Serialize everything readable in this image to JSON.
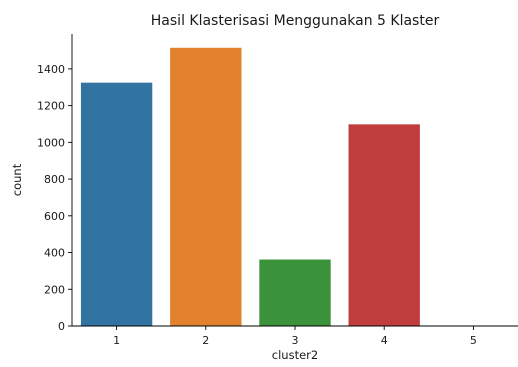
{
  "chart_data": {
    "type": "bar",
    "title": "Hasil Klasterisasi Menggunakan 5 Klaster",
    "xlabel": "cluster2",
    "ylabel": "count",
    "categories": [
      "1",
      "2",
      "3",
      "4",
      "5"
    ],
    "values": [
      1325,
      1515,
      362,
      1098,
      0
    ],
    "colors": [
      "#3274a1",
      "#e1812c",
      "#3a923a",
      "#c03d3e",
      "#9372b2"
    ],
    "ylim": [
      0,
      1590
    ],
    "yticks": [
      0,
      200,
      400,
      600,
      800,
      1000,
      1200,
      1400
    ],
    "grid": false,
    "legend": "none"
  }
}
